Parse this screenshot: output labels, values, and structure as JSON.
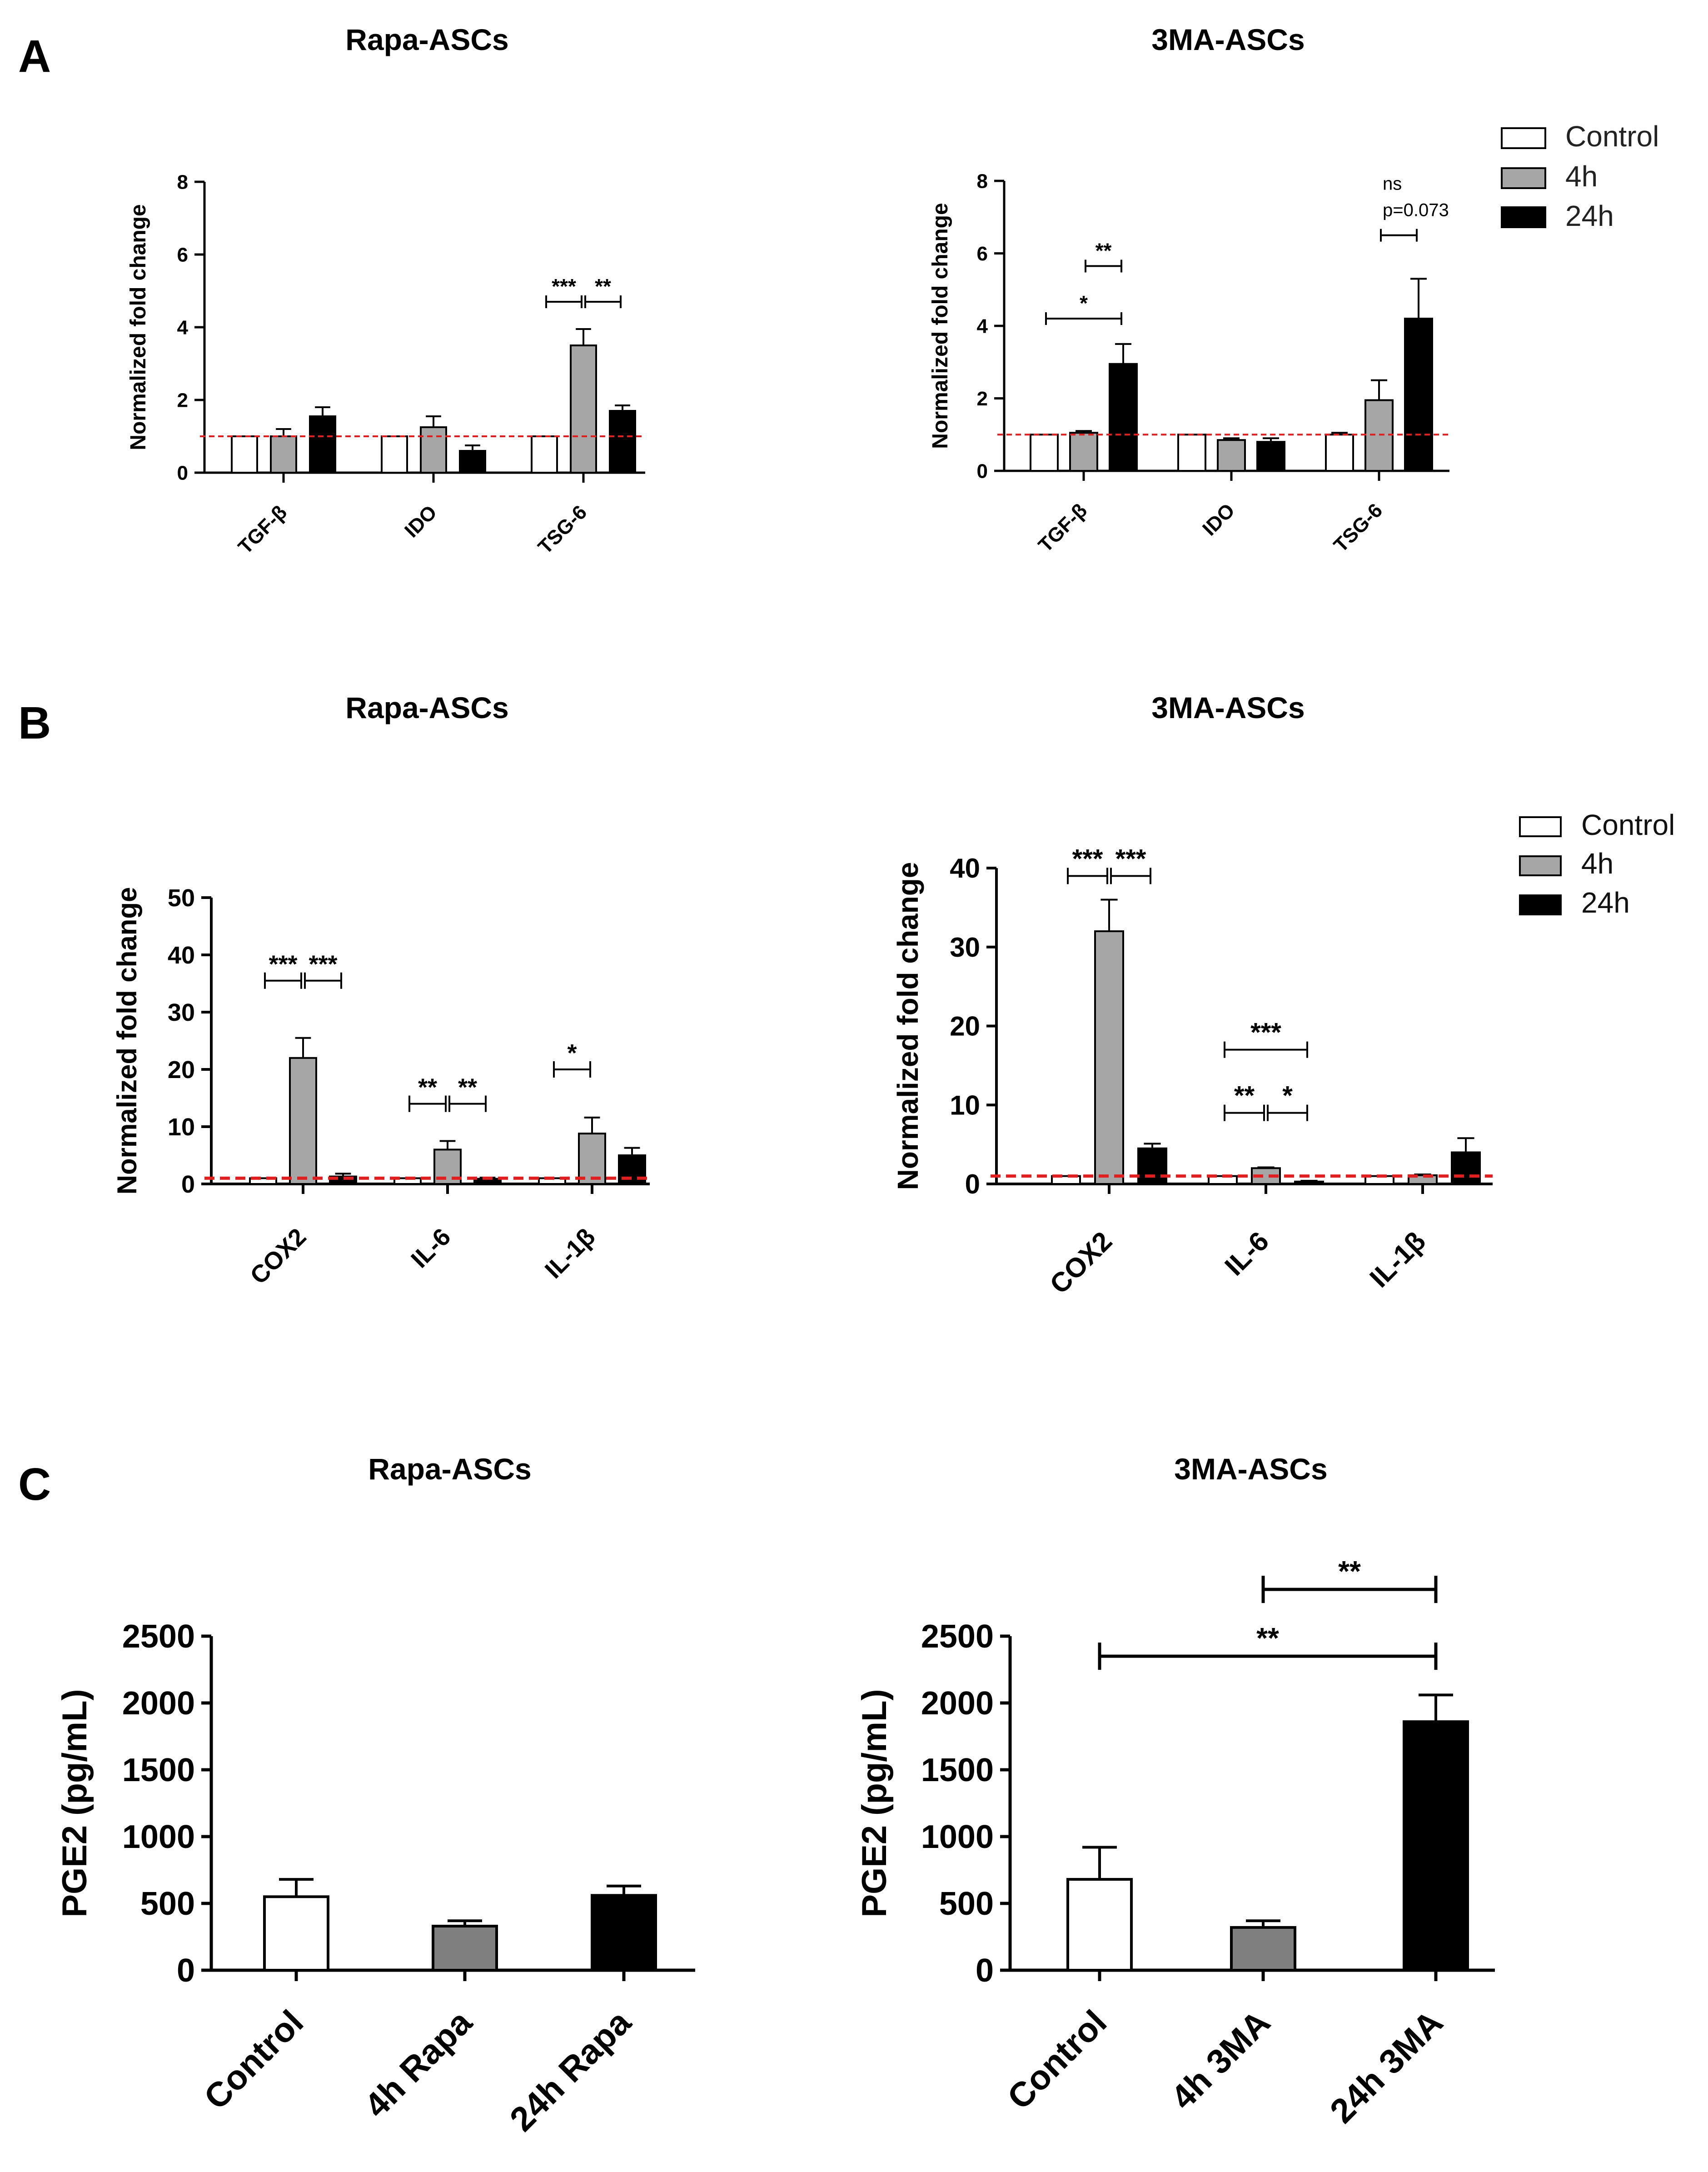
{
  "figure": {
    "panels": {
      "A": {
        "letter": "A",
        "left_title": "Rapa-ASCs",
        "right_title": "3MA-ASCs",
        "legend": [
          {
            "label": "Control",
            "color": "#ffffff"
          },
          {
            "label": "4h",
            "color": "#a6a6a6"
          },
          {
            "label": "24h",
            "color": "#000000"
          }
        ]
      },
      "B": {
        "letter": "B",
        "left_title": "Rapa-ASCs",
        "right_title": "3MA-ASCs",
        "legend": [
          {
            "label": "Control",
            "color": "#ffffff"
          },
          {
            "label": "4h",
            "color": "#a6a6a6"
          },
          {
            "label": "24h",
            "color": "#000000"
          }
        ]
      },
      "C": {
        "letter": "C",
        "left_title": "Rapa-ASCs",
        "right_title": "3MA-ASCs"
      }
    }
  },
  "chart_data": [
    {
      "id": "A-left",
      "type": "bar",
      "title": "Rapa-ASCs",
      "ylabel": "Normalized fold change",
      "xlabel": "",
      "ylim": [
        0,
        8
      ],
      "yticks": [
        0,
        2,
        4,
        6,
        8
      ],
      "categories": [
        "TGF-β",
        "IDO",
        "TSG-6"
      ],
      "reference_line": 1,
      "series": [
        {
          "name": "Control",
          "color": "#ffffff",
          "values": [
            1.0,
            1.0,
            1.0
          ],
          "errors": [
            0,
            0,
            0
          ]
        },
        {
          "name": "4h",
          "color": "#a6a6a6",
          "values": [
            1.0,
            1.25,
            3.5
          ],
          "errors": [
            0.2,
            0.3,
            0.45
          ]
        },
        {
          "name": "24h",
          "color": "#000000",
          "values": [
            1.55,
            0.6,
            1.7
          ],
          "errors": [
            0.25,
            0.15,
            0.15
          ]
        }
      ],
      "annotations": [
        {
          "category": 2,
          "from": 0,
          "to": 1,
          "level": 4.7,
          "text": "***"
        },
        {
          "category": 2,
          "from": 1,
          "to": 2,
          "level": 4.7,
          "text": "**"
        }
      ]
    },
    {
      "id": "A-right",
      "type": "bar",
      "title": "3MA-ASCs",
      "ylabel": "Normalized fold change",
      "xlabel": "",
      "ylim": [
        0,
        8
      ],
      "yticks": [
        0,
        2,
        4,
        6,
        8
      ],
      "categories": [
        "TGF-β",
        "IDO",
        "TSG-6"
      ],
      "reference_line": 1,
      "series": [
        {
          "name": "Control",
          "color": "#ffffff",
          "values": [
            1.0,
            1.0,
            1.0
          ],
          "errors": [
            0,
            0,
            0.05
          ]
        },
        {
          "name": "4h",
          "color": "#a6a6a6",
          "values": [
            1.05,
            0.85,
            1.95
          ],
          "errors": [
            0.05,
            0.05,
            0.55
          ]
        },
        {
          "name": "24h",
          "color": "#000000",
          "values": [
            2.95,
            0.8,
            4.2
          ],
          "errors": [
            0.55,
            0.1,
            1.1
          ]
        }
      ],
      "annotations": [
        {
          "category": 0,
          "from": 0,
          "to": 2,
          "level": 4.2,
          "text": "*"
        },
        {
          "category": 0,
          "from": 1,
          "to": 2,
          "level": 5.65,
          "text": "**"
        },
        {
          "category": 2,
          "from": 1,
          "to": 2,
          "level": 6.5,
          "text": "ns",
          "text2": "p=0.073"
        }
      ]
    },
    {
      "id": "B-left",
      "type": "bar",
      "title": "Rapa-ASCs",
      "ylabel": "Normalized fold change",
      "xlabel": "",
      "ylim": [
        0,
        50
      ],
      "yticks": [
        0,
        10,
        20,
        30,
        40,
        50
      ],
      "categories": [
        "COX2",
        "IL-6",
        "IL-1β"
      ],
      "reference_line": 1,
      "series": [
        {
          "name": "Control",
          "color": "#ffffff",
          "values": [
            1.0,
            1.0,
            1.0
          ],
          "errors": [
            0,
            0,
            0
          ]
        },
        {
          "name": "4h",
          "color": "#a6a6a6",
          "values": [
            22.0,
            6.0,
            8.8
          ],
          "errors": [
            3.5,
            1.5,
            2.8
          ]
        },
        {
          "name": "24h",
          "color": "#000000",
          "values": [
            1.3,
            0.9,
            5.0
          ],
          "errors": [
            0.5,
            0.2,
            1.3
          ]
        }
      ],
      "annotations": [
        {
          "category": 0,
          "from": 0,
          "to": 1,
          "level": 35.5,
          "text": "***"
        },
        {
          "category": 0,
          "from": 1,
          "to": 2,
          "level": 35.5,
          "text": "***"
        },
        {
          "category": 1,
          "from": 0,
          "to": 1,
          "level": 14,
          "text": "**"
        },
        {
          "category": 1,
          "from": 1,
          "to": 2,
          "level": 14,
          "text": "**"
        },
        {
          "category": 2,
          "from": 0,
          "to": 1,
          "level": 20,
          "text": "*"
        }
      ]
    },
    {
      "id": "B-right",
      "type": "bar",
      "title": "3MA-ASCs",
      "ylabel": "Normalized fold change",
      "xlabel": "",
      "ylim": [
        0,
        40
      ],
      "yticks": [
        0,
        10,
        20,
        30,
        40
      ],
      "categories": [
        "COX2",
        "IL-6",
        "IL-1β"
      ],
      "reference_line": 1,
      "series": [
        {
          "name": "Control",
          "color": "#ffffff",
          "values": [
            1.0,
            1.0,
            1.0
          ],
          "errors": [
            0,
            0,
            0
          ]
        },
        {
          "name": "4h",
          "color": "#a6a6a6",
          "values": [
            32.0,
            2.0,
            1.1
          ],
          "errors": [
            4.0,
            0.1,
            0.1
          ]
        },
        {
          "name": "24h",
          "color": "#000000",
          "values": [
            4.5,
            0.3,
            4.0
          ],
          "errors": [
            0.6,
            0.1,
            1.8
          ]
        }
      ],
      "annotations": [
        {
          "category": 0,
          "from": 0,
          "to": 1,
          "level": 39,
          "text": "***"
        },
        {
          "category": 0,
          "from": 1,
          "to": 2,
          "level": 39,
          "text": "***"
        },
        {
          "category": 1,
          "from": 0,
          "to": 2,
          "level": 17,
          "text": "***"
        },
        {
          "category": 1,
          "from": 0,
          "to": 1,
          "level": 9,
          "text": "**"
        },
        {
          "category": 1,
          "from": 1,
          "to": 2,
          "level": 9,
          "text": "*"
        }
      ]
    },
    {
      "id": "C-left",
      "type": "bar",
      "title": "Rapa-ASCs",
      "ylabel": "PGE2 (pg/mL)",
      "xlabel": "",
      "ylim": [
        0,
        2500
      ],
      "yticks": [
        0,
        500,
        1000,
        1500,
        2000,
        2500
      ],
      "categories": [
        "Control",
        "4h Rapa",
        "24h Rapa"
      ],
      "values": [
        550,
        330,
        560
      ],
      "errors": [
        130,
        40,
        70
      ],
      "colors": [
        "#ffffff",
        "#7f7f7f",
        "#000000"
      ],
      "annotations": []
    },
    {
      "id": "C-right",
      "type": "bar",
      "title": "3MA-ASCs",
      "ylabel": "PGE2 (pg/mL)",
      "xlabel": "",
      "ylim": [
        0,
        2500
      ],
      "yticks": [
        0,
        500,
        1000,
        1500,
        2000,
        2500
      ],
      "categories": [
        "Control",
        "4h 3MA",
        "24h 3MA"
      ],
      "values": [
        680,
        320,
        1860
      ],
      "errors": [
        240,
        50,
        200
      ],
      "colors": [
        "#ffffff",
        "#7f7f7f",
        "#000000"
      ],
      "annotations": [
        {
          "from": 0,
          "to": 2,
          "level": 2350,
          "text": "**"
        },
        {
          "from": 1,
          "to": 2,
          "level": 2850,
          "text": "**"
        }
      ]
    }
  ]
}
